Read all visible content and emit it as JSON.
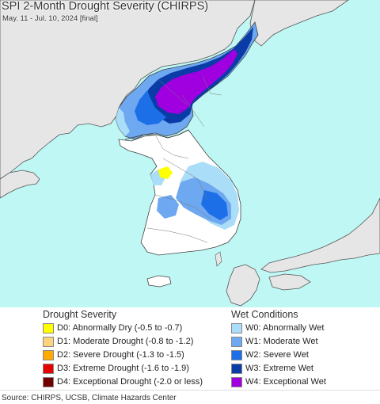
{
  "header": {
    "title": "SPI 2-Month Drought Severity (CHIRPS)",
    "subtitle": "May. 11 - Jul. 10, 2024 [final]"
  },
  "map": {
    "sea_color": "#bff7f5",
    "foreign_land_color": "#e6e6e6",
    "land_no_anomaly_color": "#ffffff",
    "border_color": "#444444"
  },
  "legend": {
    "drought": {
      "title": "Drought Severity",
      "items": [
        {
          "label": "D0: Abnormally Dry (-0.5 to -0.7)",
          "color": "#ffff00"
        },
        {
          "label": "D1: Moderate Drought (-0.8 to -1.2)",
          "color": "#fcd37f"
        },
        {
          "label": "D2: Severe Drought (-1.3 to -1.5)",
          "color": "#ffaa00"
        },
        {
          "label": "D3: Extreme Drought (-1.6 to -1.9)",
          "color": "#e60000"
        },
        {
          "label": "D4: Exceptional Drought (-2.0 or less)",
          "color": "#730000"
        }
      ]
    },
    "wet": {
      "title": "Wet Conditions",
      "items": [
        {
          "label": "W0: Abnormally Wet",
          "color": "#aaddf7"
        },
        {
          "label": "W1: Moderate Wet",
          "color": "#6ea8f0"
        },
        {
          "label": "W2: Severe Wet",
          "color": "#1d6fe8"
        },
        {
          "label": "W3: Extreme Wet",
          "color": "#0a3ca8"
        },
        {
          "label": "W4: Exceptional Wet",
          "color": "#a000e0"
        }
      ]
    }
  },
  "footer": {
    "source": "Source: CHIRPS, UCSB, Climate Hazards Center"
  }
}
